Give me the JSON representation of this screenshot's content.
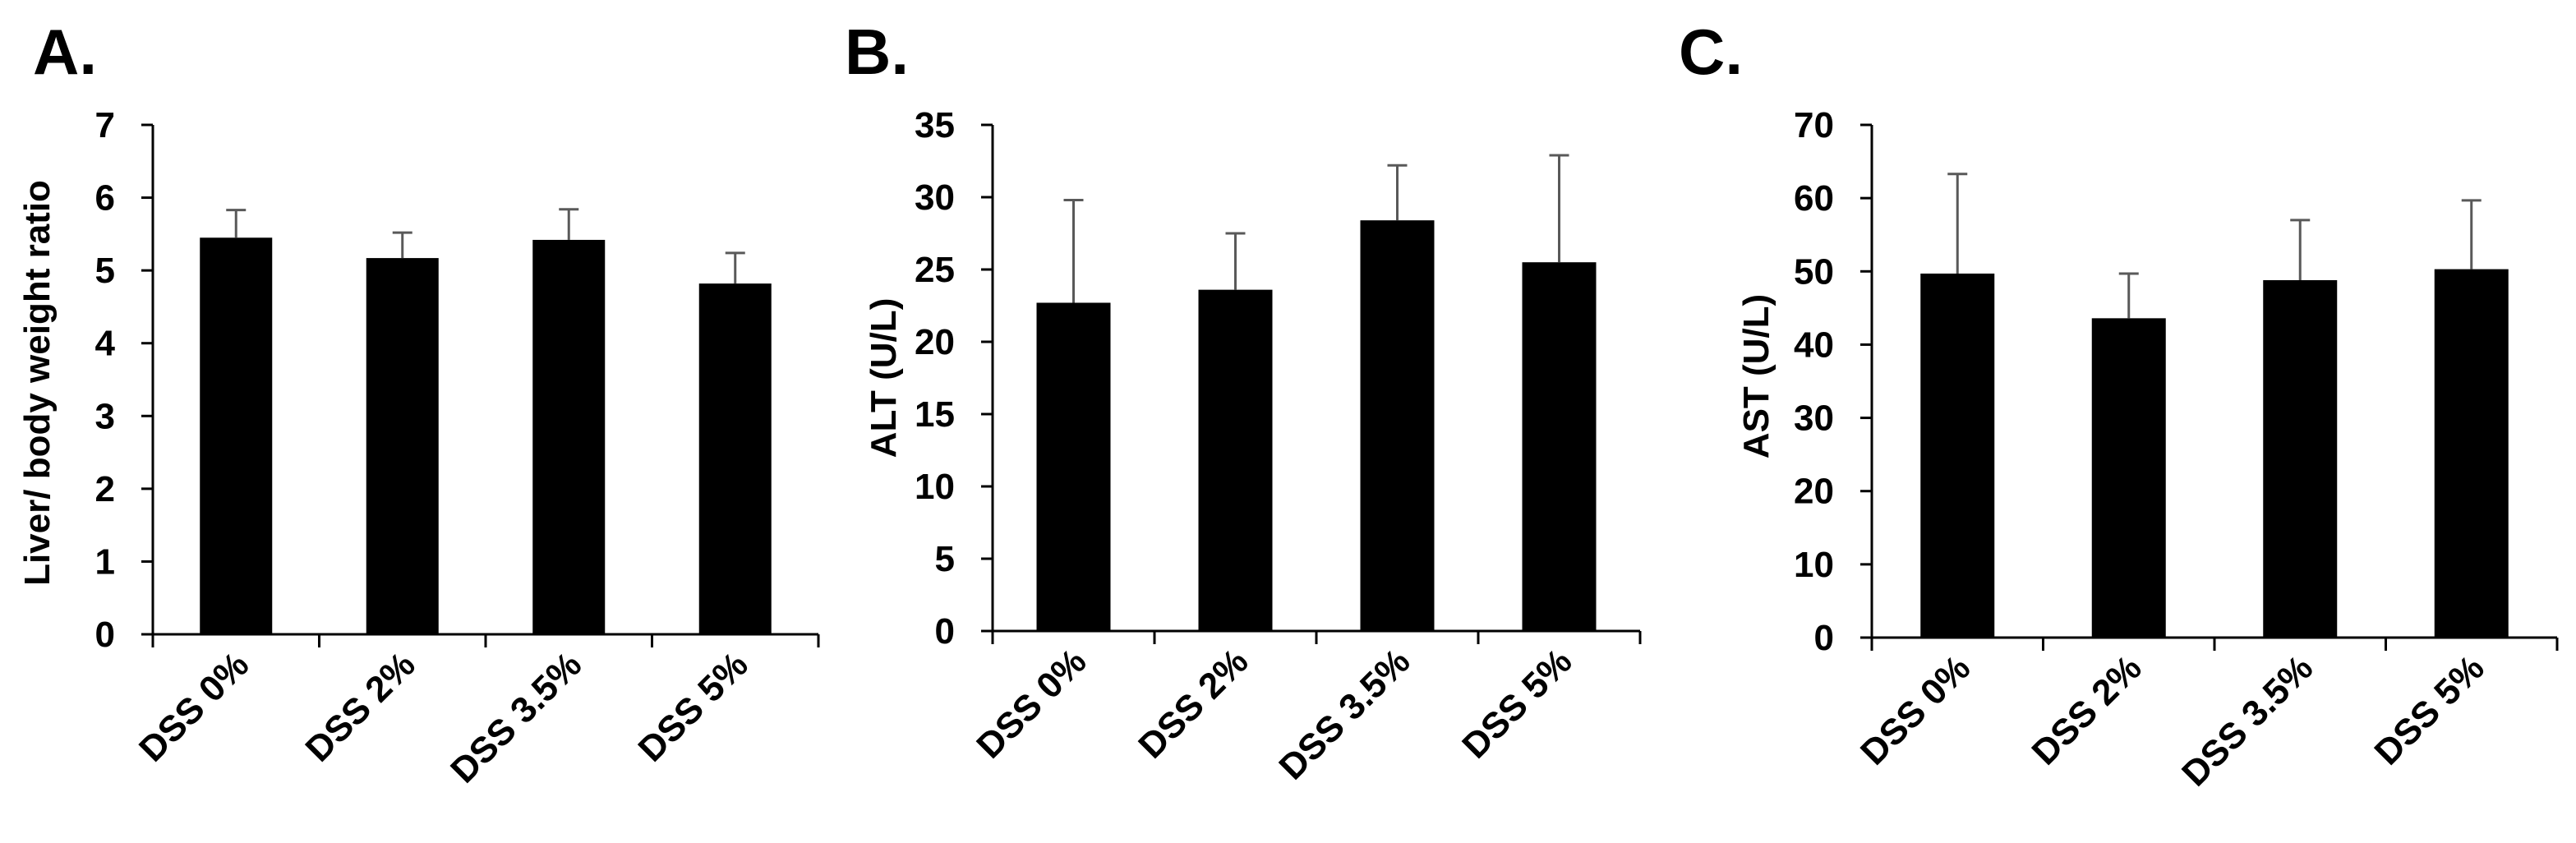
{
  "chart_data": [
    {
      "type": "bar",
      "panel_label": "A.",
      "title": "",
      "xlabel": "",
      "ylabel": "Liver/ body weight ratio",
      "categories": [
        "DSS 0%",
        "DSS 2%",
        "DSS 3.5%",
        "DSS 5%"
      ],
      "values": [
        5.45,
        5.17,
        5.42,
        4.82
      ],
      "error": [
        0.38,
        0.35,
        0.42,
        0.42
      ],
      "ylim": [
        0,
        7
      ],
      "yticks": [
        0,
        1,
        2,
        3,
        4,
        5,
        6,
        7
      ],
      "grid": false,
      "bar_color": "#000000",
      "error_color": "#595959"
    },
    {
      "type": "bar",
      "panel_label": "B.",
      "title": "",
      "xlabel": "",
      "ylabel": "ALT (U/L)",
      "categories": [
        "DSS 0%",
        "DSS 2%",
        "DSS 3.5%",
        "DSS 5%"
      ],
      "values": [
        22.7,
        23.6,
        28.4,
        25.5
      ],
      "error": [
        7.1,
        3.9,
        3.8,
        7.4
      ],
      "ylim": [
        0,
        35
      ],
      "yticks": [
        0,
        5,
        10,
        15,
        20,
        25,
        30,
        35
      ],
      "grid": false,
      "bar_color": "#000000",
      "error_color": "#595959"
    },
    {
      "type": "bar",
      "panel_label": "C.",
      "title": "",
      "xlabel": "",
      "ylabel": "AST (U/L)",
      "categories": [
        "DSS 0%",
        "DSS 2%",
        "DSS 3.5%",
        "DSS 5%"
      ],
      "values": [
        49.7,
        43.6,
        48.8,
        50.3
      ],
      "error": [
        13.6,
        6.1,
        8.2,
        9.4
      ],
      "ylim": [
        0,
        70
      ],
      "yticks": [
        0,
        10,
        20,
        30,
        40,
        50,
        60,
        70
      ],
      "grid": false,
      "bar_color": "#000000",
      "error_color": "#595959"
    }
  ]
}
